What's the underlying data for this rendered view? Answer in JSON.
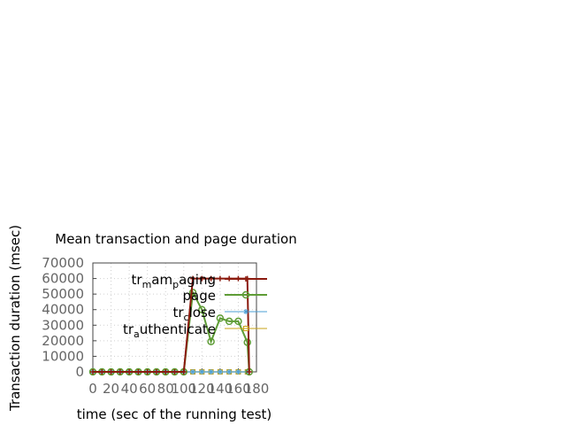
{
  "chart_data": {
    "type": "line",
    "title": "Mean transaction and page duration",
    "xlabel": "time (sec of the running test)",
    "ylabel": "Transaction duration (msec)",
    "xlim": [
      0,
      180
    ],
    "ylim": [
      0,
      70000
    ],
    "xticks": [
      "0",
      "20",
      "40",
      "60",
      "80",
      "100",
      "120",
      "140",
      "160",
      "180"
    ],
    "yticks": [
      "0",
      "10000",
      "20000",
      "30000",
      "40000",
      "50000",
      "60000",
      "70000"
    ],
    "grid": true,
    "legend_position": "top-right",
    "series": [
      {
        "name": "tr_mam_paging",
        "legend_parts": [
          [
            "tr",
            "m",
            "am",
            "p",
            "aging"
          ]
        ],
        "color": "#8b1a0e",
        "marker": "plus",
        "points": [
          [
            0,
            0
          ],
          [
            10,
            0
          ],
          [
            20,
            0
          ],
          [
            30,
            0
          ],
          [
            40,
            0
          ],
          [
            50,
            0
          ],
          [
            60,
            0
          ],
          [
            70,
            0
          ],
          [
            80,
            0
          ],
          [
            90,
            0
          ],
          [
            100,
            0
          ],
          [
            110,
            60000
          ],
          [
            120,
            60000
          ],
          [
            130,
            60000
          ],
          [
            140,
            60000
          ],
          [
            150,
            60000
          ],
          [
            160,
            60000
          ],
          [
            170,
            60000
          ],
          [
            172,
            0
          ]
        ]
      },
      {
        "name": "page",
        "color": "#5e9c36",
        "marker": "circle",
        "points": [
          [
            0,
            0
          ],
          [
            10,
            0
          ],
          [
            20,
            0
          ],
          [
            30,
            0
          ],
          [
            40,
            0
          ],
          [
            50,
            0
          ],
          [
            60,
            0
          ],
          [
            70,
            0
          ],
          [
            80,
            0
          ],
          [
            90,
            0
          ],
          [
            100,
            0
          ],
          [
            110,
            51000
          ],
          [
            120,
            40000
          ],
          [
            130,
            19500
          ],
          [
            140,
            34500
          ],
          [
            150,
            32500
          ],
          [
            160,
            32500
          ],
          [
            170,
            19000
          ],
          [
            172,
            0
          ]
        ]
      },
      {
        "name": "tr_close",
        "color": "#4b9fd5",
        "marker": "star",
        "points": [
          [
            0,
            0
          ],
          [
            10,
            0
          ],
          [
            20,
            0
          ],
          [
            30,
            0
          ],
          [
            40,
            0
          ],
          [
            50,
            0
          ],
          [
            60,
            0
          ],
          [
            70,
            0
          ],
          [
            80,
            0
          ],
          [
            90,
            0
          ],
          [
            100,
            0
          ],
          [
            110,
            0
          ],
          [
            120,
            0
          ],
          [
            130,
            0
          ],
          [
            140,
            0
          ],
          [
            150,
            0
          ],
          [
            160,
            0
          ],
          [
            170,
            0
          ]
        ]
      },
      {
        "name": "tr_authenticate",
        "color": "#c8a316",
        "marker": "square",
        "points": [
          [
            0,
            0
          ],
          [
            10,
            0
          ],
          [
            20,
            0
          ],
          [
            30,
            0
          ],
          [
            40,
            0
          ],
          [
            50,
            0
          ],
          [
            60,
            0
          ],
          [
            70,
            0
          ],
          [
            80,
            0
          ],
          [
            90,
            0
          ],
          [
            100,
            0
          ],
          [
            110,
            0
          ],
          [
            120,
            0
          ],
          [
            130,
            0
          ],
          [
            140,
            0
          ],
          [
            150,
            0
          ],
          [
            160,
            0
          ],
          [
            170,
            0
          ]
        ]
      }
    ],
    "legend_labels": {
      "s0": {
        "a": "tr",
        "b": "m",
        "c": "am",
        "d": "p",
        "e": "aging"
      },
      "s1": {
        "a": "page"
      },
      "s2": {
        "a": "tr",
        "b": "c",
        "c": "lose"
      },
      "s3": {
        "a": "tr",
        "b": "a",
        "c": "uthenticate"
      }
    }
  }
}
